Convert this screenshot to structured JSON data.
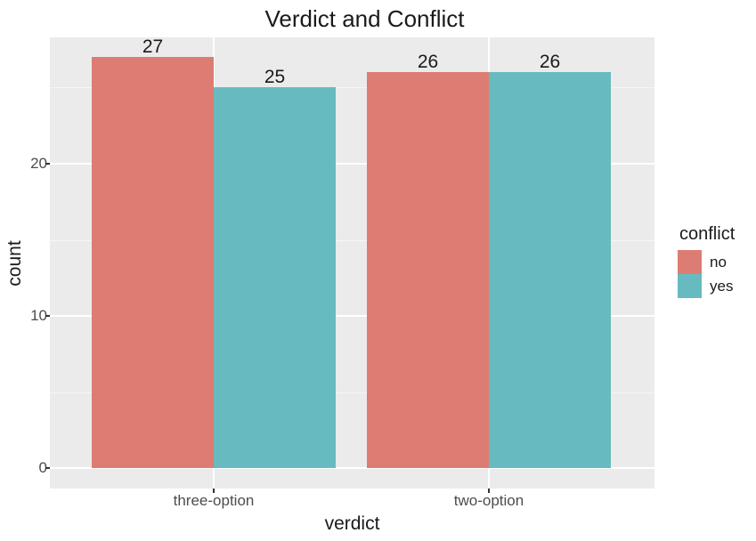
{
  "title": "Verdict and Conflict",
  "chart_data": {
    "type": "bar",
    "title": "Verdict and Conflict",
    "xlabel": "verdict",
    "ylabel": "count",
    "categories": [
      "three-option",
      "two-option"
    ],
    "series": [
      {
        "name": "no",
        "color": "#DD7C72",
        "values": [
          27,
          26
        ]
      },
      {
        "name": "yes",
        "color": "#67BBC0",
        "values": [
          25,
          26
        ]
      }
    ],
    "ylim": [
      0,
      28.3
    ],
    "y_major_ticks": [
      0,
      10,
      20
    ],
    "y_minor_gridlines": [
      5,
      15,
      25
    ],
    "bar_value_labels": [
      [
        27,
        26
      ],
      [
        25,
        26
      ]
    ],
    "legend_position": "right",
    "grid": "on",
    "panel_background": "#EBEBEB",
    "gridline_color": "#FFFFFF",
    "axis_text_color": "#4d4d4d"
  },
  "legend": {
    "title": "conflict",
    "items": [
      {
        "label": "no",
        "color": "#DD7C72"
      },
      {
        "label": "yes",
        "color": "#67BBC0"
      }
    ]
  }
}
